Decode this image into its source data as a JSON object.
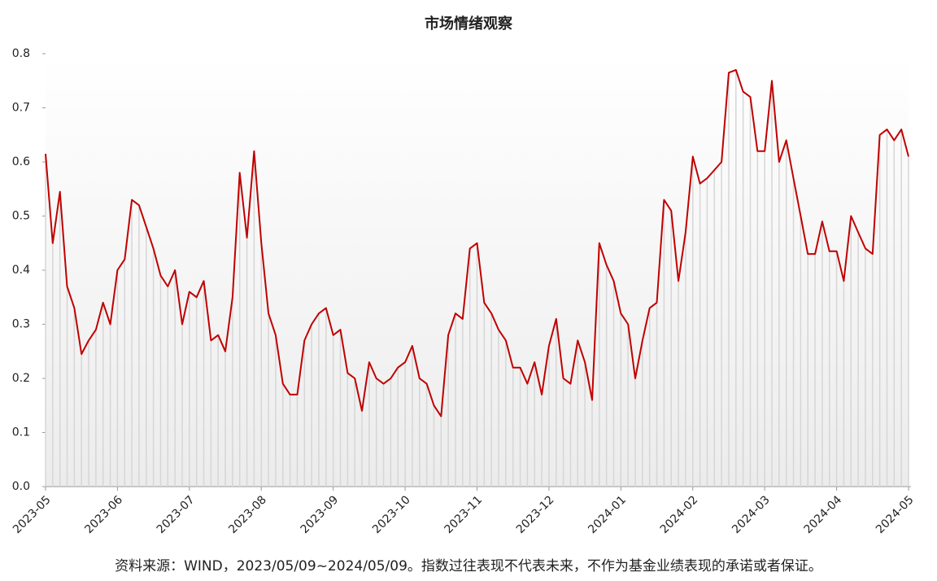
{
  "chart_data": {
    "type": "line",
    "title": "市场情绪观察",
    "footnote": "资料来源：WIND，2023/05/09~2024/05/09。指数过往表现不代表未来，不作为基金业绩表现的承诺或者保证。",
    "categories": [
      "2023-05",
      null,
      null,
      null,
      null,
      null,
      null,
      null,
      null,
      null,
      "2023-06",
      null,
      null,
      null,
      null,
      null,
      null,
      null,
      null,
      null,
      "2023-07",
      null,
      null,
      null,
      null,
      null,
      null,
      null,
      null,
      null,
      "2023-08",
      null,
      null,
      null,
      null,
      null,
      null,
      null,
      null,
      null,
      "2023-09",
      null,
      null,
      null,
      null,
      null,
      null,
      null,
      null,
      null,
      "2023-10",
      null,
      null,
      null,
      null,
      null,
      null,
      null,
      null,
      null,
      "2023-11",
      null,
      null,
      null,
      null,
      null,
      null,
      null,
      null,
      null,
      "2023-12",
      null,
      null,
      null,
      null,
      null,
      null,
      null,
      null,
      null,
      "2024-01",
      null,
      null,
      null,
      null,
      null,
      null,
      null,
      null,
      null,
      "2024-02",
      null,
      null,
      null,
      null,
      null,
      null,
      null,
      null,
      null,
      "2024-03",
      null,
      null,
      null,
      null,
      null,
      null,
      null,
      null,
      null,
      "2024-04",
      null,
      null,
      null,
      null,
      null,
      null,
      null,
      null,
      null,
      "2024-05"
    ],
    "series": [
      {
        "name": "市场情绪",
        "color": "#c00000",
        "values": [
          0.615,
          0.45,
          0.545,
          0.37,
          0.33,
          0.245,
          0.27,
          0.29,
          0.34,
          0.3,
          0.4,
          0.42,
          0.53,
          0.52,
          0.48,
          0.44,
          0.39,
          0.37,
          0.4,
          0.3,
          0.36,
          0.35,
          0.38,
          0.27,
          0.28,
          0.25,
          0.35,
          0.58,
          0.46,
          0.62,
          0.45,
          0.32,
          0.28,
          0.19,
          0.17,
          0.17,
          0.27,
          0.3,
          0.32,
          0.33,
          0.28,
          0.29,
          0.21,
          0.2,
          0.14,
          0.23,
          0.2,
          0.19,
          0.2,
          0.22,
          0.23,
          0.26,
          0.2,
          0.19,
          0.15,
          0.13,
          0.28,
          0.32,
          0.31,
          0.44,
          0.45,
          0.34,
          0.32,
          0.29,
          0.27,
          0.22,
          0.22,
          0.19,
          0.23,
          0.17,
          0.26,
          0.31,
          0.2,
          0.19,
          0.27,
          0.23,
          0.16,
          0.45,
          0.41,
          0.38,
          0.32,
          0.3,
          0.2,
          0.27,
          0.33,
          0.34,
          0.53,
          0.51,
          0.38,
          0.47,
          0.61,
          0.56,
          0.57,
          0.585,
          0.6,
          0.765,
          0.77,
          0.73,
          0.72,
          0.62,
          0.62,
          0.75,
          0.6,
          0.64,
          0.57,
          0.5,
          0.43,
          0.43,
          0.49,
          0.435,
          0.435,
          0.38,
          0.5,
          0.47,
          0.44,
          0.43,
          0.65,
          0.66,
          0.64,
          0.66,
          0.61
        ]
      }
    ],
    "ylim": [
      0,
      0.8
    ],
    "yticks": [
      {
        "value": 0,
        "label": "0.0"
      },
      0.1,
      0.2,
      0.3,
      0.4,
      0.5,
      0.6,
      0.7,
      0.8
    ]
  }
}
